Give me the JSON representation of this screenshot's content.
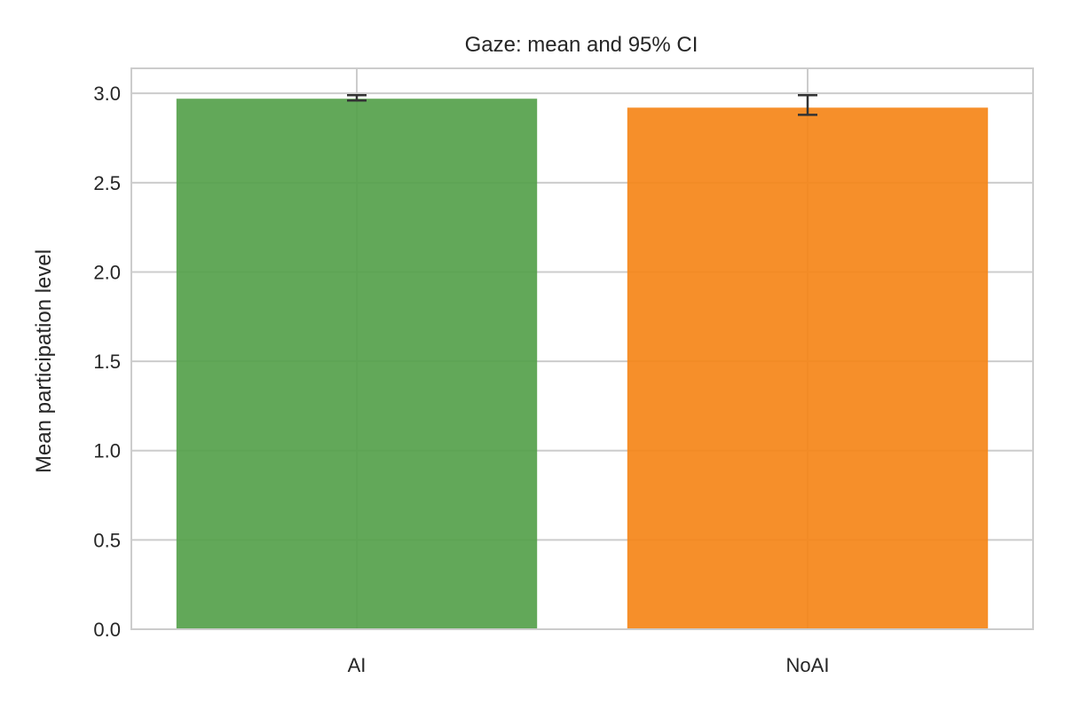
{
  "chart_data": {
    "type": "bar",
    "title": "Gaze: mean and 95% CI",
    "xlabel": "",
    "ylabel": "Mean participation level",
    "categories": [
      "AI",
      "NoAI"
    ],
    "values": [
      2.97,
      2.92
    ],
    "ci_lower": [
      2.96,
      2.88
    ],
    "ci_upper": [
      2.99,
      2.99
    ],
    "colors": [
      "#55a14b",
      "#f58518"
    ],
    "ylim": [
      0,
      3.14
    ],
    "yticks": [
      "0.0",
      "0.5",
      "1.0",
      "1.5",
      "2.0",
      "2.5",
      "3.0"
    ],
    "grid": true
  }
}
